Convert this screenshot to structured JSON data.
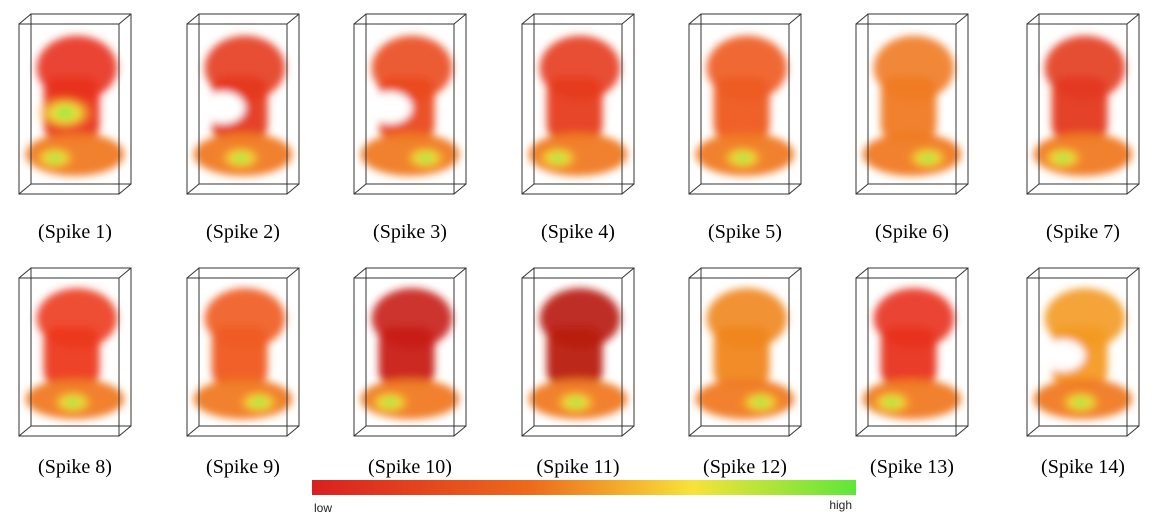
{
  "figure": {
    "panels": [
      {
        "caption": "(Spike 1)"
      },
      {
        "caption": "(Spike 2)"
      },
      {
        "caption": "(Spike 3)"
      },
      {
        "caption": "(Spike 4)"
      },
      {
        "caption": "(Spike 5)"
      },
      {
        "caption": "(Spike 6)"
      },
      {
        "caption": "(Spike 7)"
      },
      {
        "caption": "(Spike 8)"
      },
      {
        "caption": "(Spike 9)"
      },
      {
        "caption": "(Spike 10)"
      },
      {
        "caption": "(Spike 11)"
      },
      {
        "caption": "(Spike 12)"
      },
      {
        "caption": "(Spike 13)"
      },
      {
        "caption": "(Spike 14)"
      }
    ],
    "colorbar": {
      "low": "low",
      "high": "high"
    }
  }
}
